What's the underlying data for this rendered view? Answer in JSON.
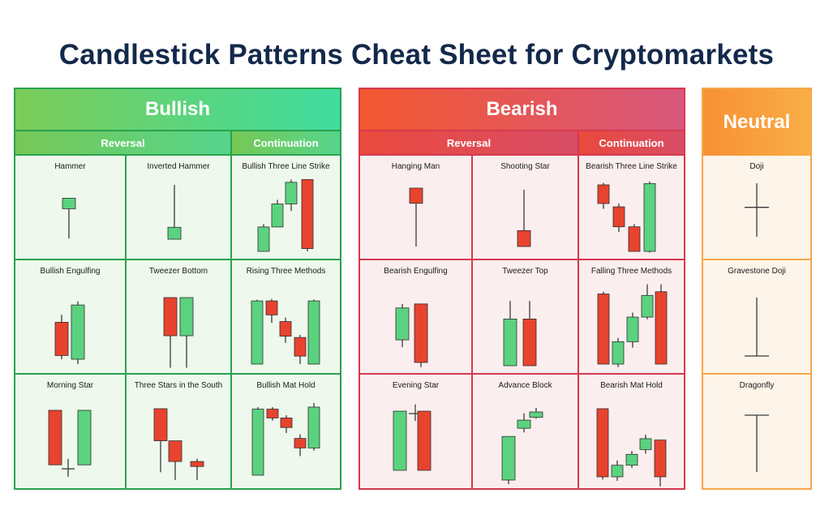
{
  "title": "Candlestick Patterns Cheat Sheet for Cryptomarkets",
  "colors": {
    "green": "#5bd27f",
    "red": "#e8432e",
    "wick": "#3a3a3a",
    "bullish_border": "#2aa24e",
    "bearish_border": "#d6394f",
    "neutral_border": "#f7a64a"
  },
  "bullish": {
    "header": "Bullish",
    "reversal_label": "Reversal",
    "continuation_label": "Continuation",
    "patterns": [
      {
        "name": "Hammer",
        "candles": [
          {
            "c": "g",
            "o": 0.59,
            "cl": 0.8,
            "h": 0.8,
            "l": 0.0
          }
        ]
      },
      {
        "name": "Inverted Hammer",
        "candles": [
          {
            "c": "g",
            "o": 0.0,
            "cl": 0.22,
            "h": 1.0,
            "l": 0.0
          }
        ]
      },
      {
        "name": "Bullish Three Line Strike",
        "candles": [
          {
            "c": "g",
            "o": 0.0,
            "cl": 0.35,
            "h": 0.39,
            "l": 0.0
          },
          {
            "c": "g",
            "o": 0.35,
            "cl": 0.68,
            "h": 0.74,
            "l": 0.35
          },
          {
            "c": "g",
            "o": 0.68,
            "cl": 0.99,
            "h": 1.03,
            "l": 0.58
          },
          {
            "c": "r",
            "o": 1.03,
            "cl": 0.04,
            "h": 1.03,
            "l": 0.0
          }
        ]
      },
      {
        "name": "Bullish Engulfing",
        "candles": [
          {
            "c": "r",
            "o": 0.6,
            "cl": 0.06,
            "h": 0.72,
            "l": 0.0
          },
          {
            "c": "g",
            "o": 0.0,
            "cl": 0.88,
            "h": 0.94,
            "l": -0.08
          }
        ]
      },
      {
        "name": "Tweezer Bottom",
        "candles": [
          {
            "c": "r",
            "o": 1.0,
            "cl": 0.44,
            "h": 1.0,
            "l": -0.03
          },
          {
            "c": "g",
            "o": 0.44,
            "cl": 1.0,
            "h": 1.0,
            "l": -0.03
          }
        ]
      },
      {
        "name": "Rising Three Methods",
        "candles": [
          {
            "c": "g",
            "o": 0.0,
            "cl": 0.95,
            "h": 0.97,
            "l": 0.0
          },
          {
            "c": "r",
            "o": 0.95,
            "cl": 0.74,
            "h": 0.98,
            "l": 0.62
          },
          {
            "c": "r",
            "o": 0.64,
            "cl": 0.42,
            "h": 0.7,
            "l": 0.32
          },
          {
            "c": "r",
            "o": 0.4,
            "cl": 0.12,
            "h": 0.44,
            "l": 0.0
          },
          {
            "c": "g",
            "o": 0.0,
            "cl": 0.95,
            "h": 0.97,
            "l": 0.0
          }
        ]
      },
      {
        "name": "Morning Star",
        "candles": [
          {
            "c": "r",
            "o": 1.0,
            "cl": 0.18,
            "h": 1.0,
            "l": 0.18
          },
          {
            "c": "d",
            "o": 0.12,
            "cl": 0.12,
            "h": 0.27,
            "l": 0.0
          },
          {
            "c": "g",
            "o": 0.18,
            "cl": 1.0,
            "h": 1.0,
            "l": 0.18
          }
        ]
      },
      {
        "name": "Three Stars in the South",
        "candles": [
          {
            "c": "r",
            "o": 1.0,
            "cl": 0.55,
            "h": 1.0,
            "l": 0.11
          },
          {
            "c": "r",
            "o": 0.55,
            "cl": 0.26,
            "h": 0.55,
            "l": 0.0
          },
          {
            "c": "r",
            "o": 0.26,
            "cl": 0.19,
            "h": 0.3,
            "l": 0.0
          }
        ]
      },
      {
        "name": "Bullish Mat Hold",
        "candles": [
          {
            "c": "g",
            "o": 0.0,
            "cl": 0.97,
            "h": 1.0,
            "l": 0.0
          },
          {
            "c": "r",
            "o": 0.97,
            "cl": 0.84,
            "h": 1.0,
            "l": 0.8
          },
          {
            "c": "r",
            "o": 0.84,
            "cl": 0.7,
            "h": 0.88,
            "l": 0.62
          },
          {
            "c": "r",
            "o": 0.54,
            "cl": 0.4,
            "h": 0.6,
            "l": 0.28
          },
          {
            "c": "g",
            "o": 0.4,
            "cl": 1.0,
            "h": 1.06,
            "l": 0.36
          }
        ]
      }
    ]
  },
  "bearish": {
    "header": "Bearish",
    "reversal_label": "Reversal",
    "continuation_label": "Continuation",
    "patterns": [
      {
        "name": "Hanging Man",
        "candles": [
          {
            "c": "r",
            "o": 1.0,
            "cl": 0.74,
            "h": 1.0,
            "l": 0.0
          }
        ]
      },
      {
        "name": "Shooting Star",
        "candles": [
          {
            "c": "r",
            "o": 0.28,
            "cl": 0.0,
            "h": 1.0,
            "l": 0.0
          }
        ]
      },
      {
        "name": "Bearish Three Line Strike",
        "candles": [
          {
            "c": "r",
            "o": 1.0,
            "cl": 0.72,
            "h": 1.03,
            "l": 0.64
          },
          {
            "c": "r",
            "o": 0.67,
            "cl": 0.37,
            "h": 0.72,
            "l": 0.29
          },
          {
            "c": "r",
            "o": 0.37,
            "cl": 0.0,
            "h": 0.41,
            "l": 0.0
          },
          {
            "c": "g",
            "o": 0.0,
            "cl": 1.02,
            "h": 1.05,
            "l": -0.02
          }
        ]
      },
      {
        "name": "Bearish Engulfing",
        "candles": [
          {
            "c": "g",
            "o": 0.34,
            "cl": 0.82,
            "h": 0.88,
            "l": 0.23
          },
          {
            "c": "r",
            "o": 0.88,
            "cl": 0.0,
            "h": 0.88,
            "l": -0.07
          }
        ]
      },
      {
        "name": "Tweezer Top",
        "candles": [
          {
            "c": "g",
            "o": 0.0,
            "cl": 0.72,
            "h": 1.0,
            "l": 0.0
          },
          {
            "c": "r",
            "o": 0.72,
            "cl": 0.0,
            "h": 1.0,
            "l": 0.0
          }
        ]
      },
      {
        "name": "Falling Three Methods",
        "candles": [
          {
            "c": "r",
            "o": 0.94,
            "cl": 0.0,
            "h": 0.97,
            "l": 0.0
          },
          {
            "c": "g",
            "o": 0.0,
            "cl": 0.3,
            "h": 0.35,
            "l": -0.04
          },
          {
            "c": "g",
            "o": 0.3,
            "cl": 0.63,
            "h": 0.69,
            "l": 0.22
          },
          {
            "c": "g",
            "o": 0.63,
            "cl": 0.92,
            "h": 1.07,
            "l": 0.6
          },
          {
            "c": "r",
            "o": 0.97,
            "cl": 0.0,
            "h": 1.07,
            "l": 0.0
          }
        ]
      },
      {
        "name": "Evening Star",
        "candles": [
          {
            "c": "g",
            "o": 0.0,
            "cl": 0.96,
            "h": 0.96,
            "l": 0.0
          },
          {
            "c": "d",
            "o": 0.92,
            "cl": 0.92,
            "h": 1.07,
            "l": 0.8
          },
          {
            "c": "r",
            "o": 0.96,
            "cl": 0.0,
            "h": 0.96,
            "l": 0.0
          }
        ]
      },
      {
        "name": "Advance Block",
        "candles": [
          {
            "c": "g",
            "o": 0.0,
            "cl": 0.64,
            "h": 0.64,
            "l": -0.06
          },
          {
            "c": "g",
            "o": 0.76,
            "cl": 0.88,
            "h": 0.98,
            "l": 0.7
          },
          {
            "c": "g",
            "o": 0.92,
            "cl": 1.0,
            "h": 1.06,
            "l": 0.9
          }
        ]
      },
      {
        "name": "Bearish Mat Hold",
        "candles": [
          {
            "c": "r",
            "o": 1.0,
            "cl": 0.0,
            "h": 1.0,
            "l": -0.04
          },
          {
            "c": "g",
            "o": 0.0,
            "cl": 0.17,
            "h": 0.24,
            "l": -0.06
          },
          {
            "c": "g",
            "o": 0.17,
            "cl": 0.33,
            "h": 0.38,
            "l": 0.13
          },
          {
            "c": "g",
            "o": 0.4,
            "cl": 0.56,
            "h": 0.62,
            "l": 0.34
          },
          {
            "c": "r",
            "o": 0.54,
            "cl": 0.0,
            "h": 0.54,
            "l": -0.14
          }
        ]
      }
    ]
  },
  "neutral": {
    "header": "Neutral",
    "patterns": [
      {
        "name": "Doji",
        "candles": [
          {
            "c": "d",
            "o": 0.55,
            "cl": 0.55,
            "h": 1.0,
            "l": 0.0
          }
        ]
      },
      {
        "name": "Gravestone Doji",
        "candles": [
          {
            "c": "d",
            "o": 0.0,
            "cl": 0.0,
            "h": 1.0,
            "l": 0.0
          }
        ]
      },
      {
        "name": "Dragonfly",
        "candles": [
          {
            "c": "d",
            "o": 1.0,
            "cl": 1.0,
            "h": 1.0,
            "l": 0.0
          }
        ]
      }
    ]
  }
}
